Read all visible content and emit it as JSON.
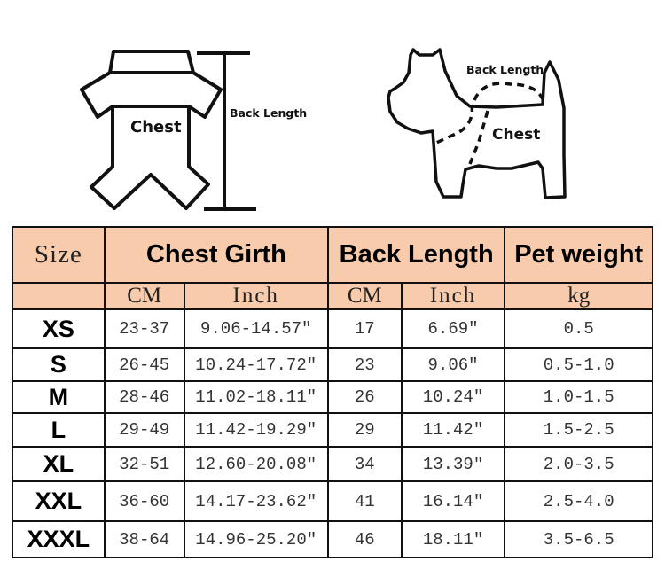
{
  "diagrams": {
    "garment": {
      "chest_label": "Chest",
      "back_length_label": "Back Length"
    },
    "dog": {
      "chest_label": "Chest",
      "back_length_label": "Back Length"
    }
  },
  "table": {
    "header_color": "#f8cbad",
    "headers": {
      "size": "Size",
      "chest": "Chest Girth",
      "back": "Back Length",
      "weight": "Pet weight"
    },
    "units": {
      "chest_cm": "CM",
      "chest_inch": "Inch",
      "back_cm": "CM",
      "back_inch": "Inch",
      "weight": "kg"
    },
    "rows": [
      {
        "size": "XS",
        "chest_cm": "23-37",
        "chest_inch": "9.06-14.57″",
        "back_cm": "17",
        "back_inch": "6.69″",
        "weight": "0.5"
      },
      {
        "size": "S",
        "chest_cm": "26-45",
        "chest_inch": "10.24-17.72″",
        "back_cm": "23",
        "back_inch": "9.06″",
        "weight": "0.5-1.0"
      },
      {
        "size": "M",
        "chest_cm": "28-46",
        "chest_inch": "11.02-18.11″",
        "back_cm": "26",
        "back_inch": "10.24″",
        "weight": "1.0-1.5"
      },
      {
        "size": "L",
        "chest_cm": "29-49",
        "chest_inch": "11.42-19.29″",
        "back_cm": "29",
        "back_inch": "11.42″",
        "weight": "1.5-2.5"
      },
      {
        "size": "XL",
        "chest_cm": "32-51",
        "chest_inch": "12.60-20.08″",
        "back_cm": "34",
        "back_inch": "13.39″",
        "weight": "2.0-3.5"
      },
      {
        "size": "XXL",
        "chest_cm": "36-60",
        "chest_inch": "14.17-23.62″",
        "back_cm": "41",
        "back_inch": "16.14″",
        "weight": "2.5-4.0"
      },
      {
        "size": "XXXL",
        "chest_cm": "38-64",
        "chest_inch": "14.96-25.20″",
        "back_cm": "46",
        "back_inch": "18.11″",
        "weight": "3.5-6.5"
      }
    ]
  }
}
